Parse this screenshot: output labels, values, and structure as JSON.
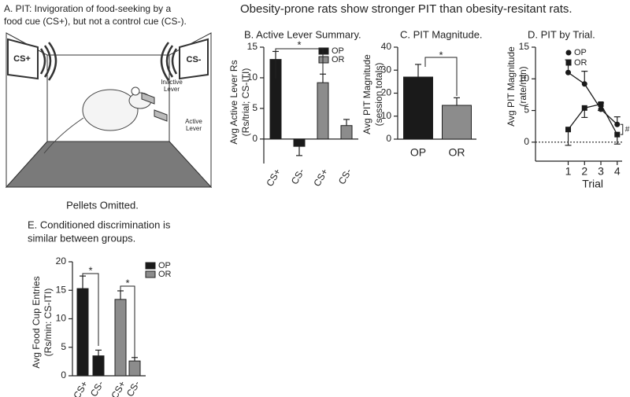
{
  "title": "Obesity-prone rats show stronger PIT than obesity-resitant rats.",
  "panel_a": {
    "title": [
      "A. PIT: Invigoration of food-seeking by a",
      "food cue (CS+), but not a control cue (CS-)."
    ],
    "cue_left": "CS+",
    "cue_right": "CS-",
    "inactive_lever": [
      "Inactive",
      "Lever"
    ],
    "active_lever": [
      "Active",
      "Lever"
    ],
    "caption": "Pellets Omitted."
  },
  "chart_data": [
    {
      "type": "bar",
      "title": "B. Active Lever Summary.",
      "ylabel": [
        "Avg Active Lever Rs",
        "(Rs/trial; CS-ITI)"
      ],
      "categories": [
        "CS+",
        "CS-",
        "CS+",
        "CS-"
      ],
      "series": [
        {
          "name": "OP",
          "color": "#1a1a1a",
          "values": [
            13,
            -1.2,
            null,
            null
          ],
          "errors": [
            1.3,
            1.5,
            null,
            null
          ]
        },
        {
          "name": "OR",
          "color": "#8c8c8c",
          "values": [
            null,
            null,
            9.2,
            2.2
          ],
          "errors": [
            null,
            null,
            1.4,
            1.0
          ]
        }
      ],
      "ylim": [
        -4,
        15
      ],
      "yticks": [
        0,
        5,
        10,
        15
      ],
      "annotations": [
        "*"
      ]
    },
    {
      "type": "bar",
      "title": "C. PIT Magnitude.",
      "ylabel": [
        "Avg PIT Magnitude",
        "(session totals)"
      ],
      "categories": [
        "OP",
        "OR"
      ],
      "series": [
        {
          "name": "PIT",
          "color": "#1a1a1a",
          "values": [
            27,
            14.7
          ],
          "errors": [
            5.5,
            3.3
          ],
          "colors": [
            "#1a1a1a",
            "#8c8c8c"
          ]
        }
      ],
      "ylim": [
        0,
        40
      ],
      "yticks": [
        0,
        10,
        20,
        30,
        40
      ],
      "annotations": [
        "*"
      ]
    },
    {
      "type": "line",
      "title": "D. PIT by Trial.",
      "ylabel": [
        "Avg PIT Magnitude",
        "(rate/min)"
      ],
      "xlabel": "Trial",
      "x": [
        1,
        2,
        3,
        4
      ],
      "series": [
        {
          "name": "OP",
          "color": "#1a1a1a",
          "marker": "circle",
          "values": [
            11,
            9.2,
            5.2,
            2.8
          ],
          "errors": [
            2,
            2,
            1,
            1.2
          ]
        },
        {
          "name": "OR",
          "color": "#1a1a1a",
          "marker": "square",
          "values": [
            2,
            5.4,
            6,
            1.2
          ],
          "errors": [
            2.5,
            1.5,
            1,
            1.5
          ]
        }
      ],
      "xlim": [
        -1,
        4.3
      ],
      "xticks": [
        1,
        2,
        3,
        4
      ],
      "ylim": [
        -3,
        15
      ],
      "yticks": [
        0,
        5,
        10,
        15
      ],
      "zero_line": true,
      "annotations": [
        "#"
      ]
    },
    {
      "type": "bar",
      "title": [
        "E. Conditioned discrimination is",
        "similar between groups."
      ],
      "ylabel": [
        "Avg Food Cup Entries",
        "(Rs/min: CS-ITI)"
      ],
      "categories": [
        "CS+",
        "CS-",
        "CS+",
        "CS-"
      ],
      "series": [
        {
          "name": "OP",
          "color": "#1a1a1a",
          "values": [
            15.3,
            3.5,
            null,
            null
          ],
          "errors": [
            2.2,
            1.0,
            null,
            null
          ]
        },
        {
          "name": "OR",
          "color": "#8c8c8c",
          "values": [
            null,
            null,
            13.4,
            2.6
          ],
          "errors": [
            null,
            null,
            1.5,
            0.6
          ]
        }
      ],
      "ylim": [
        0,
        20
      ],
      "yticks": [
        0,
        5,
        10,
        15,
        20
      ],
      "annotations": [
        "*",
        "*"
      ]
    }
  ]
}
